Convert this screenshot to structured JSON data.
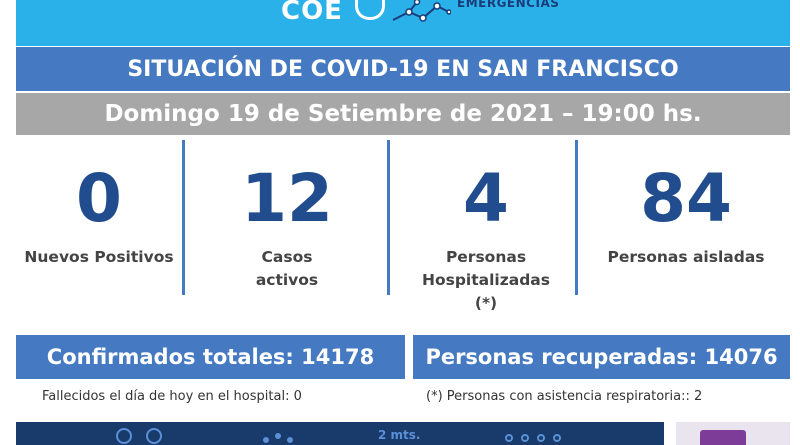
{
  "header": {
    "logo_text": "COE",
    "logo_subtitle": "EMERGENCIAS",
    "title": "SITUACIÓN DE COVID-19 EN SAN FRANCISCO",
    "date": "Domingo 19 de Setiembre de 2021 – 19:00 hs."
  },
  "stats": [
    {
      "value": "0",
      "label_line1": "Nuevos Positivos",
      "label_line2": "",
      "label_line3": ""
    },
    {
      "value": "12",
      "label_line1": "Casos",
      "label_line2": "activos",
      "label_line3": ""
    },
    {
      "value": "4",
      "label_line1": "Personas",
      "label_line2": "Hospitalizadas",
      "label_line3": "(*)"
    },
    {
      "value": "84",
      "label_line1": "Personas aisladas",
      "label_line2": "",
      "label_line3": ""
    }
  ],
  "totals": {
    "confirmed": "Confirmados totales: 14178",
    "recovered": "Personas recuperadas: 14076"
  },
  "notes": {
    "deaths": "Fallecidos el día de hoy en el hospital: 0",
    "respiratory": "(*) Personas con asistencia respiratoria:: 2"
  },
  "footer": {
    "distance_label": "2 mts."
  },
  "colors": {
    "banner": "#2bb1ea",
    "primary": "#4579c1",
    "date_bar": "#a7a7a7",
    "number": "#214c8e",
    "footer": "#183b6b"
  }
}
